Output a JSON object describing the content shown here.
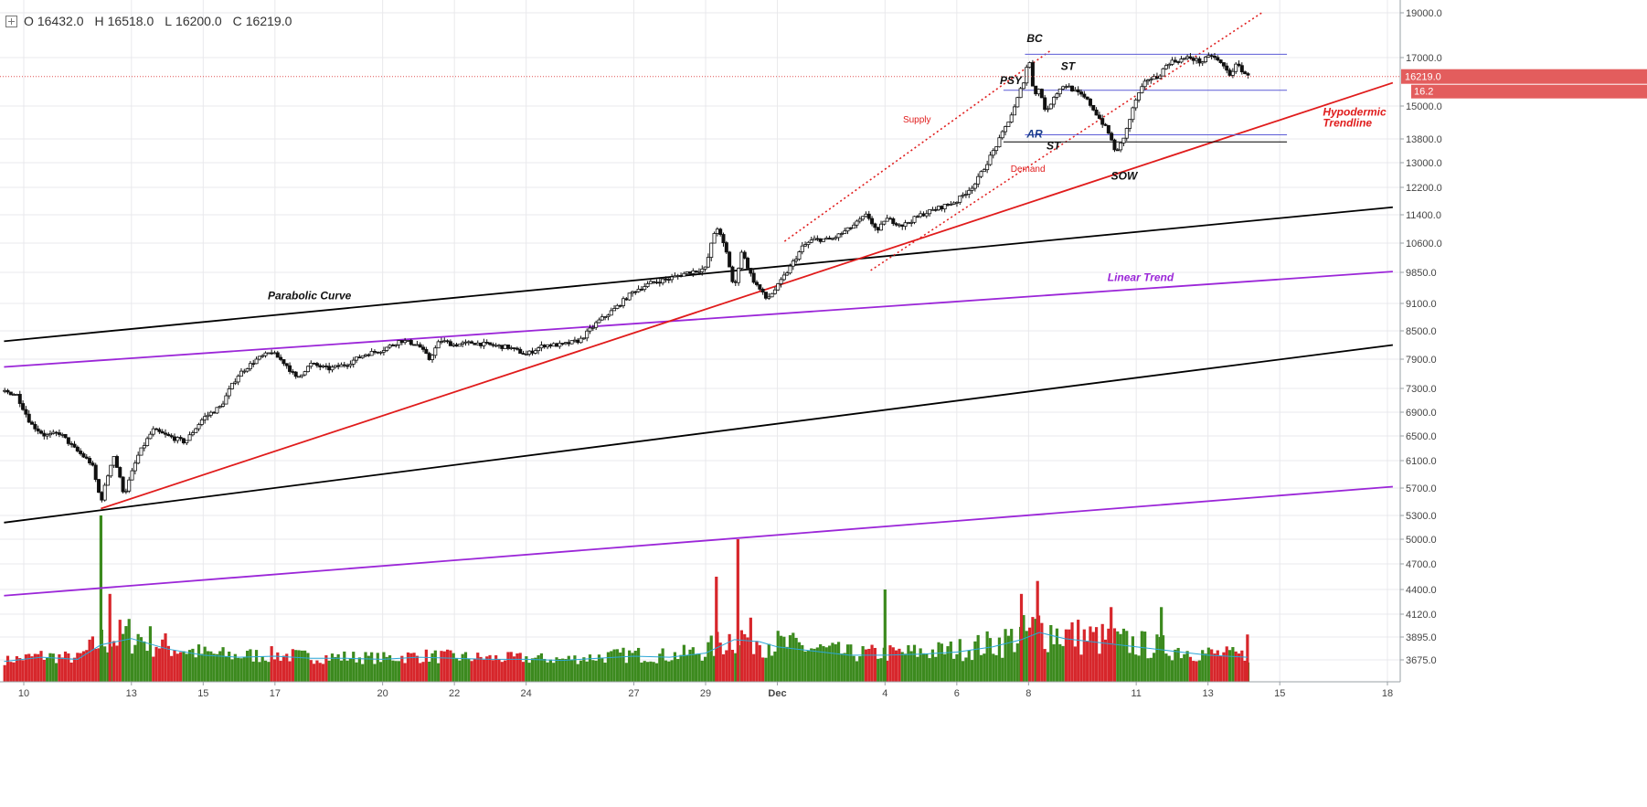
{
  "ohlc": {
    "open_label": "O",
    "open": "16432.0",
    "high_label": "H",
    "high": "16518.0",
    "low_label": "L",
    "low": "16200.0",
    "close_label": "C",
    "close": "16219.0"
  },
  "price_axis": {
    "last_price": "16219.0",
    "last_price_short": "16.2"
  },
  "colors": {
    "background": "#ffffff",
    "grid": "#e9e9ec",
    "candle": "#111111",
    "volume_up": "#3c8a1e",
    "volume_down": "#d7262b",
    "volume_ma": "#2aa6d6",
    "parabolic": "#000000",
    "linear": "#9b26d8",
    "hypodermic": "#e01c1c",
    "range": "#5b5bd6",
    "last_price": "#e05252"
  },
  "chart_data": {
    "type": "candlestick",
    "title": "",
    "x_tick_labels": [
      {
        "day": 10,
        "label": "10"
      },
      {
        "day": 13,
        "label": "13"
      },
      {
        "day": 15,
        "label": "15"
      },
      {
        "day": 17,
        "label": "17"
      },
      {
        "day": 20,
        "label": "20"
      },
      {
        "day": 22,
        "label": "22"
      },
      {
        "day": 24,
        "label": "24"
      },
      {
        "day": 27,
        "label": "27"
      },
      {
        "day": 29,
        "label": "29"
      },
      {
        "day": 31,
        "label": "Dec"
      },
      {
        "day": 34,
        "label": "4"
      },
      {
        "day": 36,
        "label": "6"
      },
      {
        "day": 38,
        "label": "8"
      },
      {
        "day": 41,
        "label": "11"
      },
      {
        "day": 43,
        "label": "13"
      },
      {
        "day": 45,
        "label": "15"
      },
      {
        "day": 48,
        "label": "18"
      }
    ],
    "x_range_days": [
      9.45,
      48.3
    ],
    "y_axis_ticks": [
      {
        "value": 3675,
        "label": "3675.0"
      },
      {
        "value": 3895,
        "label": "3895.0"
      },
      {
        "value": 4120,
        "label": "4120.0"
      },
      {
        "value": 4400,
        "label": "4400.0"
      },
      {
        "value": 4700,
        "label": "4700.0"
      },
      {
        "value": 5000,
        "label": "5000.0"
      },
      {
        "value": 5300,
        "label": "5300.0"
      },
      {
        "value": 5700,
        "label": "5700.0"
      },
      {
        "value": 6100,
        "label": "6100.0"
      },
      {
        "value": 6500,
        "label": "6500.0"
      },
      {
        "value": 6900,
        "label": "6900.0"
      },
      {
        "value": 7300,
        "label": "7300.0"
      },
      {
        "value": 7900,
        "label": "7900.0"
      },
      {
        "value": 8500,
        "label": "8500.0"
      },
      {
        "value": 9100,
        "label": "9100.0"
      },
      {
        "value": 9850,
        "label": "9850.0"
      },
      {
        "value": 10600,
        "label": "10600.0"
      },
      {
        "value": 11400,
        "label": "11400.0"
      },
      {
        "value": 12200,
        "label": "12200.0"
      },
      {
        "value": 13000,
        "label": "13000.0"
      },
      {
        "value": 13800,
        "label": "13800.0"
      },
      {
        "value": 15000,
        "label": "15000.0"
      },
      {
        "value": 17000,
        "label": "17000.0"
      },
      {
        "value": 19000,
        "label": "19000.0"
      }
    ],
    "price_path": [
      [
        9.45,
        7250
      ],
      [
        9.8,
        7200
      ],
      [
        10.2,
        6700
      ],
      [
        10.6,
        6500
      ],
      [
        11.0,
        6550
      ],
      [
        11.4,
        6300
      ],
      [
        11.9,
        6050
      ],
      [
        12.15,
        5500
      ],
      [
        12.5,
        6200
      ],
      [
        12.8,
        5600
      ],
      [
        13.2,
        6200
      ],
      [
        13.6,
        6600
      ],
      [
        14.0,
        6500
      ],
      [
        14.5,
        6400
      ],
      [
        15.0,
        6800
      ],
      [
        15.5,
        7000
      ],
      [
        16.0,
        7600
      ],
      [
        16.5,
        7900
      ],
      [
        16.9,
        8050
      ],
      [
        17.3,
        7800
      ],
      [
        17.6,
        7500
      ],
      [
        18.0,
        7800
      ],
      [
        18.5,
        7700
      ],
      [
        19.0,
        7800
      ],
      [
        19.5,
        8000
      ],
      [
        20.0,
        8100
      ],
      [
        20.5,
        8300
      ],
      [
        21.0,
        8200
      ],
      [
        21.3,
        7900
      ],
      [
        21.6,
        8300
      ],
      [
        22.0,
        8200
      ],
      [
        22.5,
        8250
      ],
      [
        23.0,
        8200
      ],
      [
        23.5,
        8150
      ],
      [
        24.0,
        8000
      ],
      [
        24.5,
        8200
      ],
      [
        25.0,
        8200
      ],
      [
        25.5,
        8300
      ],
      [
        26.0,
        8700
      ],
      [
        26.5,
        9000
      ],
      [
        27.0,
        9400
      ],
      [
        27.5,
        9600
      ],
      [
        28.0,
        9700
      ],
      [
        28.5,
        9850
      ],
      [
        29.0,
        9950
      ],
      [
        29.3,
        11100
      ],
      [
        29.6,
        10300
      ],
      [
        29.8,
        9400
      ],
      [
        30.0,
        10400
      ],
      [
        30.3,
        9700
      ],
      [
        30.7,
        9200
      ],
      [
        31.0,
        9500
      ],
      [
        31.3,
        9900
      ],
      [
        31.7,
        10500
      ],
      [
        32.0,
        10700
      ],
      [
        32.5,
        10700
      ],
      [
        33.0,
        11000
      ],
      [
        33.5,
        11400
      ],
      [
        33.8,
        10900
      ],
      [
        34.0,
        11300
      ],
      [
        34.5,
        11100
      ],
      [
        35.0,
        11400
      ],
      [
        35.5,
        11600
      ],
      [
        36.0,
        11800
      ],
      [
        36.5,
        12300
      ],
      [
        36.8,
        12900
      ],
      [
        37.2,
        13800
      ],
      [
        37.6,
        14900
      ],
      [
        37.9,
        16200
      ],
      [
        38.0,
        17100
      ],
      [
        38.15,
        15500
      ],
      [
        38.3,
        15700
      ],
      [
        38.5,
        14700
      ],
      [
        38.7,
        15400
      ],
      [
        39.0,
        15900
      ],
      [
        39.3,
        15600
      ],
      [
        39.6,
        15300
      ],
      [
        39.9,
        14700
      ],
      [
        40.2,
        14100
      ],
      [
        40.45,
        13300
      ],
      [
        40.7,
        14000
      ],
      [
        41.0,
        15300
      ],
      [
        41.3,
        16100
      ],
      [
        41.6,
        16200
      ],
      [
        41.9,
        16800
      ],
      [
        42.2,
        16900
      ],
      [
        42.5,
        17000
      ],
      [
        42.8,
        16800
      ],
      [
        43.1,
        17100
      ],
      [
        43.4,
        16700
      ],
      [
        43.6,
        16300
      ],
      [
        43.8,
        16700
      ],
      [
        44.0,
        16400
      ],
      [
        44.1,
        16219
      ]
    ],
    "volume_ma": [
      [
        9.45,
        3660
      ],
      [
        10.5,
        3700
      ],
      [
        11.5,
        3680
      ],
      [
        12.15,
        3820
      ],
      [
        13.0,
        3880
      ],
      [
        14.0,
        3780
      ],
      [
        15.0,
        3720
      ],
      [
        16.0,
        3700
      ],
      [
        17.0,
        3710
      ],
      [
        18.0,
        3690
      ],
      [
        19.0,
        3690
      ],
      [
        20.0,
        3680
      ],
      [
        21.0,
        3700
      ],
      [
        22.0,
        3690
      ],
      [
        23.0,
        3680
      ],
      [
        24.0,
        3680
      ],
      [
        25.0,
        3670
      ],
      [
        26.0,
        3690
      ],
      [
        27.0,
        3710
      ],
      [
        28.0,
        3700
      ],
      [
        29.0,
        3740
      ],
      [
        29.8,
        3870
      ],
      [
        30.5,
        3850
      ],
      [
        31.0,
        3800
      ],
      [
        32.0,
        3760
      ],
      [
        33.0,
        3720
      ],
      [
        34.0,
        3720
      ],
      [
        35.0,
        3730
      ],
      [
        36.0,
        3750
      ],
      [
        37.0,
        3800
      ],
      [
        37.8,
        3870
      ],
      [
        38.3,
        3940
      ],
      [
        39.0,
        3880
      ],
      [
        40.0,
        3840
      ],
      [
        41.0,
        3800
      ],
      [
        42.0,
        3760
      ],
      [
        43.0,
        3720
      ],
      [
        44.1,
        3700
      ]
    ],
    "volume_spikes": [
      {
        "day": 12.15,
        "value": 5300,
        "color": "up"
      },
      {
        "day": 29.9,
        "value": 5000,
        "color": "down"
      },
      {
        "day": 29.3,
        "value": 4550,
        "color": "down"
      },
      {
        "day": 38.25,
        "value": 4500,
        "color": "down"
      },
      {
        "day": 37.8,
        "value": 4350,
        "color": "down"
      },
      {
        "day": 34.0,
        "value": 4400,
        "color": "up"
      },
      {
        "day": 12.4,
        "value": 4350,
        "color": "down"
      },
      {
        "day": 41.7,
        "value": 4200,
        "color": "up"
      },
      {
        "day": 40.3,
        "value": 4200,
        "color": "down"
      },
      {
        "day": 44.1,
        "value": 3920,
        "color": "down"
      }
    ],
    "trendlines": [
      {
        "name": "Parabolic Curve",
        "style": "solid",
        "color": "parabolic",
        "points": [
          [
            9.45,
            8280
          ],
          [
            48.15,
            11620
          ]
        ]
      },
      {
        "name": "",
        "style": "solid",
        "color": "parabolic",
        "points": [
          [
            9.45,
            5210
          ],
          [
            48.15,
            8200
          ]
        ]
      },
      {
        "name": "Linear Trend",
        "style": "solid",
        "color": "linear",
        "points": [
          [
            9.45,
            7740
          ],
          [
            48.15,
            9870
          ]
        ]
      },
      {
        "name": "",
        "style": "solid",
        "color": "linear",
        "points": [
          [
            9.45,
            4330
          ],
          [
            48.15,
            5720
          ]
        ]
      },
      {
        "name": "Hypodermic Trendline",
        "style": "solid",
        "color": "hypodermic",
        "points": [
          [
            12.15,
            5400
          ],
          [
            48.15,
            15960
          ]
        ]
      },
      {
        "name": "",
        "style": "dotted",
        "color": "hypodermic",
        "points": [
          [
            31.2,
            10650
          ],
          [
            38.6,
            17300
          ]
        ]
      },
      {
        "name": "",
        "style": "dotted",
        "color": "hypodermic",
        "points": [
          [
            33.6,
            9900
          ],
          [
            44.5,
            19000
          ]
        ]
      }
    ],
    "range_lines": [
      {
        "y": 17150,
        "x": [
          37.9,
          45.2
        ],
        "color": "range"
      },
      {
        "y": 15650,
        "x": [
          37.3,
          45.2
        ],
        "color": "range"
      },
      {
        "y": 13950,
        "x": [
          37.9,
          45.2
        ],
        "color": "range"
      },
      {
        "y": 13700,
        "x": [
          37.3,
          45.2
        ],
        "color": "parabolic"
      }
    ],
    "annotations": [
      {
        "text": "BC",
        "day": 37.95,
        "value": 17700,
        "style": "bold-italic",
        "color": "#111111"
      },
      {
        "text": "PSY",
        "day": 37.2,
        "value": 15900,
        "style": "bold-italic",
        "color": "#111111"
      },
      {
        "text": "ST",
        "day": 38.9,
        "value": 16500,
        "style": "bold-italic",
        "color": "#111111"
      },
      {
        "text": "AR",
        "day": 37.95,
        "value": 13850,
        "style": "bold-italic",
        "color": "#1a3d8c"
      },
      {
        "text": "ST",
        "day": 38.5,
        "value": 13450,
        "style": "bold-italic",
        "color": "#111111"
      },
      {
        "text": "SOW",
        "day": 40.3,
        "value": 12450,
        "style": "bold-italic",
        "color": "#111111"
      },
      {
        "text": "Supply",
        "day": 34.5,
        "value": 14400,
        "style": "normal",
        "color": "#e01c1c"
      },
      {
        "text": "Demand",
        "day": 37.5,
        "value": 12700,
        "style": "normal",
        "color": "#e01c1c"
      },
      {
        "text": "Parabolic Curve",
        "day": 16.8,
        "value": 9200,
        "style": "bold-italic",
        "color": "#111111"
      },
      {
        "text": "Linear Trend",
        "day": 40.2,
        "value": 9640,
        "style": "bold-italic",
        "color": "#9b26d8"
      },
      {
        "text": "Hypodermic",
        "day": 46.2,
        "value": 14650,
        "style": "bold-italic",
        "color": "#e01c1c"
      },
      {
        "text": "Trendline",
        "day": 46.2,
        "value": 14250,
        "style": "bold-italic",
        "color": "#e01c1c"
      }
    ],
    "last_price_value": 16219,
    "grid": true,
    "legend": "none"
  }
}
